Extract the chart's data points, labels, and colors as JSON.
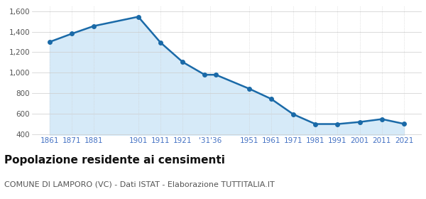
{
  "years": [
    1861,
    1871,
    1881,
    1901,
    1911,
    1921,
    1931,
    1936,
    1951,
    1961,
    1971,
    1981,
    1991,
    2001,
    2011,
    2021
  ],
  "population": [
    1300,
    1380,
    1455,
    1545,
    1295,
    1105,
    980,
    980,
    845,
    745,
    595,
    500,
    500,
    520,
    548,
    502
  ],
  "line_color": "#1a6aa8",
  "fill_color": "#d6eaf8",
  "marker": "o",
  "marker_size": 4,
  "line_width": 1.8,
  "ylim": [
    390,
    1650
  ],
  "xlim": [
    1853,
    2029
  ],
  "yticks": [
    400,
    600,
    800,
    1000,
    1200,
    1400,
    1600
  ],
  "xtick_positions": [
    1861,
    1871,
    1881,
    1901,
    1911,
    1921,
    1933.5,
    1951,
    1961,
    1971,
    1981,
    1991,
    2001,
    2011,
    2021
  ],
  "xtick_labels": [
    "1861",
    "1871",
    "1881",
    "1901",
    "1911",
    "1921",
    "'31'36",
    "1951",
    "1961",
    "1971",
    "1981",
    "1991",
    "2001",
    "2011",
    "2021"
  ],
  "title": "Popolazione residente ai censimenti",
  "subtitle": "COMUNE DI LAMPORO (VC) - Dati ISTAT - Elaborazione TUTTITALIA.IT",
  "title_fontsize": 11,
  "subtitle_fontsize": 8,
  "tick_color": "#4472c4",
  "ytick_color": "#555555",
  "bg_color": "#ffffff",
  "grid_color": "#cccccc",
  "title_color": "#111111",
  "subtitle_color": "#555555",
  "ytick_fontsize": 7.5,
  "xtick_fontsize": 7.5
}
